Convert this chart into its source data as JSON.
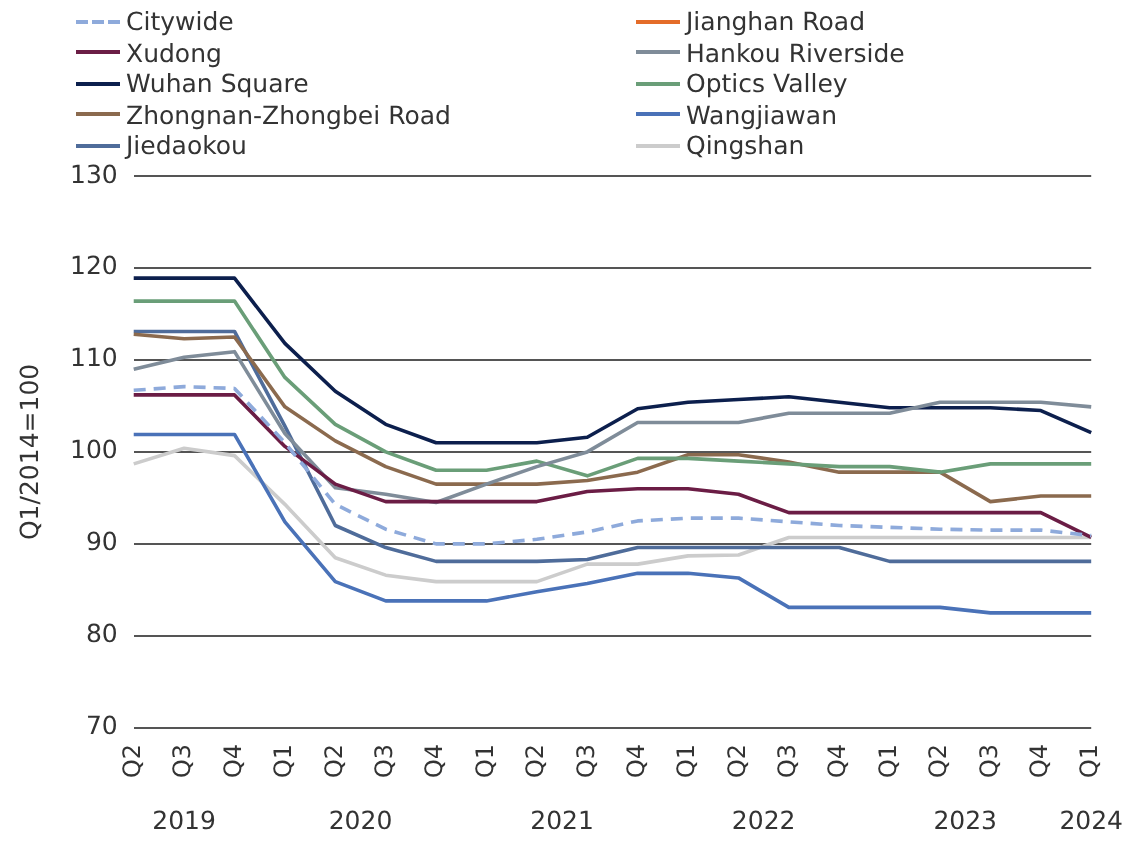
{
  "chart_data": {
    "type": "line",
    "ylabel": "Q1/2014=100",
    "categories": [
      "Q2",
      "Q3",
      "Q4",
      "Q1",
      "Q2",
      "Q3",
      "Q4",
      "Q1",
      "Q2",
      "Q3",
      "Q4",
      "Q1",
      "Q2",
      "Q3",
      "Q4",
      "Q1",
      "Q2",
      "Q3",
      "Q4",
      "Q1"
    ],
    "annotations": [
      "2019",
      "2020",
      "2021",
      "2022",
      "2023",
      "2024"
    ],
    "ylim": [
      70,
      130
    ],
    "yticks": [
      70,
      80,
      90,
      100,
      110,
      120,
      130
    ],
    "grid": "y",
    "legend": "top",
    "marker": "none",
    "series": [
      {
        "name": "Citywide",
        "color": "#8eaadb",
        "line_style": "dashed",
        "values": [
          106.7,
          107.1,
          106.9,
          101.0,
          94.3,
          91.6,
          90.0,
          90.0,
          90.5,
          91.3,
          92.5,
          92.8,
          92.8,
          92.4,
          92.0,
          91.8,
          91.6,
          91.5,
          91.5,
          90.9
        ]
      },
      {
        "name": "Jianghan Road",
        "color": "#e46c29",
        "values": [
          null,
          null,
          null,
          null,
          null,
          null,
          null,
          null,
          null,
          null,
          null,
          null,
          null,
          null,
          null,
          null,
          null,
          null,
          null,
          null
        ]
      },
      {
        "name": "Xudong",
        "color": "#6b1d45",
        "values": [
          106.2,
          106.2,
          106.2,
          100.6,
          96.5,
          94.6,
          94.6,
          94.6,
          94.6,
          95.7,
          96.0,
          96.0,
          95.4,
          93.4,
          93.4,
          93.4,
          93.4,
          93.4,
          93.4,
          90.7
        ]
      },
      {
        "name": "Hankou Riverside",
        "color": "#7f8c99",
        "values": [
          109.0,
          110.3,
          110.9,
          102.0,
          96.1,
          95.4,
          94.5,
          96.5,
          98.4,
          100.0,
          103.2,
          103.2,
          103.2,
          104.2,
          104.2,
          104.2,
          105.4,
          105.4,
          105.4,
          104.9
        ]
      },
      {
        "name": "Wuhan Square",
        "color": "#0c1f4d",
        "values": [
          118.9,
          118.9,
          118.9,
          111.8,
          106.6,
          103.0,
          101.0,
          101.0,
          101.0,
          101.6,
          104.7,
          105.4,
          105.7,
          106.0,
          105.4,
          104.8,
          104.8,
          104.8,
          104.5,
          102.1
        ]
      },
      {
        "name": "Optics Valley",
        "color": "#6a9e78",
        "values": [
          116.4,
          116.4,
          116.4,
          108.1,
          103.0,
          100.0,
          98.0,
          98.0,
          99.0,
          97.4,
          99.3,
          99.3,
          99.0,
          98.7,
          98.4,
          98.4,
          97.8,
          98.7,
          98.7,
          98.7
        ]
      },
      {
        "name": "Zhongnan-Zhongbei Road",
        "color": "#8b6a4e",
        "values": [
          112.8,
          112.3,
          112.5,
          104.9,
          101.2,
          98.4,
          96.5,
          96.5,
          96.5,
          96.9,
          97.8,
          99.7,
          99.7,
          98.9,
          97.8,
          97.8,
          97.8,
          94.6,
          95.2,
          95.2
        ]
      },
      {
        "name": "Wangjiawan",
        "color": "#4a72b8",
        "values": [
          101.9,
          101.9,
          101.9,
          92.4,
          85.9,
          83.8,
          83.8,
          83.8,
          84.8,
          85.7,
          86.8,
          86.8,
          86.3,
          83.1,
          83.1,
          83.1,
          83.1,
          82.5,
          82.5,
          82.5
        ]
      },
      {
        "name": "Jiedaokou",
        "color": "#4f6c9a",
        "values": [
          113.1,
          113.1,
          113.1,
          102.8,
          92.0,
          89.6,
          88.1,
          88.1,
          88.1,
          88.3,
          89.6,
          89.6,
          89.6,
          89.6,
          89.6,
          88.1,
          88.1,
          88.1,
          88.1,
          88.1
        ]
      },
      {
        "name": "Qingshan",
        "color": "#cccccc",
        "values": [
          98.7,
          100.4,
          99.6,
          94.3,
          88.5,
          86.6,
          85.9,
          85.9,
          85.9,
          87.8,
          87.8,
          88.7,
          88.8,
          90.7,
          90.7,
          90.7,
          90.7,
          90.7,
          90.7,
          90.7
        ]
      }
    ]
  }
}
